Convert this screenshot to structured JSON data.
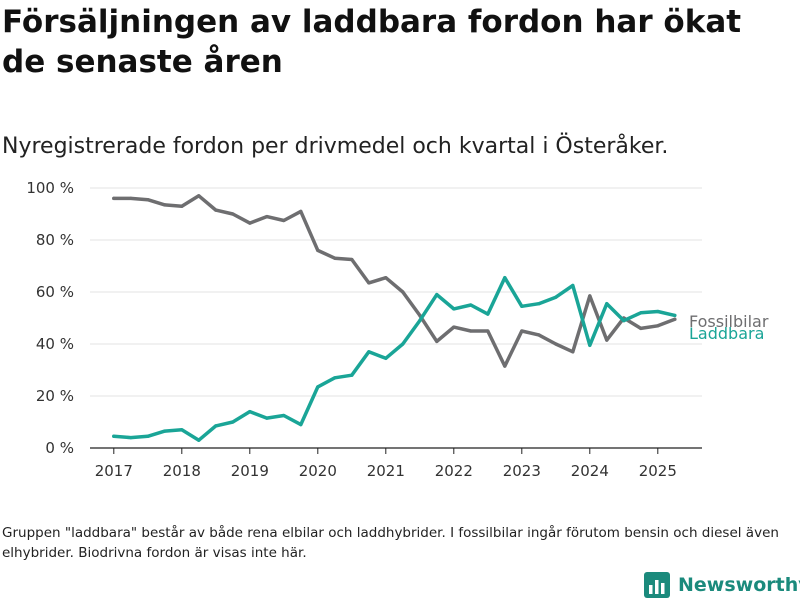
{
  "headline": "Försäljningen av laddbara fordon har ökat de senaste åren",
  "footnote": "Gruppen \"laddbara\" består av både rena elbilar och laddhybrider. I fossilbilar ingår förutom bensin och diesel även elhybrider. Biodrivna fordon är visas inte här.",
  "brand": {
    "name": "Newsworthy",
    "icon": "bar-chart-logo-icon",
    "color": "#1b8a7c"
  },
  "chart_data": {
    "type": "line",
    "title": "Nyregistrerade fordon per drivmedel och kvartal i Österåker.",
    "xlabel": "",
    "ylabel": "",
    "ylim": [
      0,
      100
    ],
    "y_ticks": [
      "0 %",
      "20 %",
      "40 %",
      "60 %",
      "80 %",
      "100 %"
    ],
    "y_tick_values": [
      0,
      20,
      40,
      60,
      80,
      100
    ],
    "x_ticks": [
      "2017",
      "2018",
      "2019",
      "2020",
      "2021",
      "2022",
      "2023",
      "2024",
      "2025"
    ],
    "x_tick_values": [
      2017,
      2018,
      2019,
      2020,
      2021,
      2022,
      2023,
      2024,
      2025
    ],
    "grid": "horizontal",
    "legend": "end-of-line labels",
    "x": [
      2017.0,
      2017.25,
      2017.5,
      2017.75,
      2018.0,
      2018.25,
      2018.5,
      2018.75,
      2019.0,
      2019.25,
      2019.5,
      2019.75,
      2020.0,
      2020.25,
      2020.5,
      2020.75,
      2021.0,
      2021.25,
      2021.5,
      2021.75,
      2022.0,
      2022.25,
      2022.5,
      2022.75,
      2023.0,
      2023.25,
      2023.5,
      2023.75,
      2024.0,
      2024.25,
      2024.5,
      2024.75,
      2025.0,
      2025.25
    ],
    "series": [
      {
        "name": "Fossilbilar",
        "color": "#6e6e70",
        "values": [
          96,
          96,
          95.5,
          93.5,
          93,
          97,
          91.5,
          90,
          86.5,
          89,
          87.5,
          91,
          76,
          73,
          72.5,
          63.5,
          65.5,
          60,
          51,
          41,
          46.5,
          45,
          45,
          31.5,
          45,
          43.5,
          40,
          37,
          58.5,
          41.5,
          50,
          46,
          47,
          49.5
        ]
      },
      {
        "name": "Laddbara",
        "color": "#1aa597",
        "values": [
          4.5,
          4,
          4.5,
          6.5,
          7,
          3,
          8.5,
          10,
          14,
          11.5,
          12.5,
          9,
          23.5,
          27,
          28,
          37,
          34.5,
          40,
          49,
          59,
          53.5,
          55,
          51.5,
          65.5,
          54.5,
          55.5,
          58,
          62.5,
          39.5,
          55.5,
          49,
          52,
          52.5,
          51
        ]
      }
    ]
  }
}
